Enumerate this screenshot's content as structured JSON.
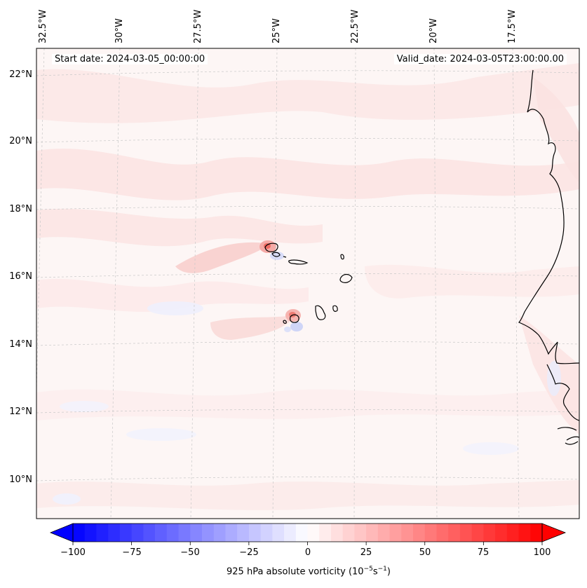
{
  "map": {
    "start_date": "Start date: 2024-03-05_00:00:00",
    "valid_date": "Valid_date: 2024-03-05T23:00:00.00",
    "lon_labels": [
      "32.5°W",
      "30°W",
      "27.5°W",
      "25°W",
      "22.5°W",
      "20°W",
      "17.5°W"
    ],
    "lat_labels": [
      "22°N",
      "20°N",
      "18°N",
      "16°N",
      "14°N",
      "12°N",
      "10°N"
    ],
    "background_color": "#fdf6f5",
    "coastline_color": "#000000",
    "gridline_color": "#c8c8c8"
  },
  "colorbar": {
    "title": "925 hPa absolute vorticity (10",
    "title_exp1": "−5",
    "title_mid": "s",
    "title_exp2": "−1",
    "title_end": ")",
    "ticks": [
      "−100",
      "−75",
      "−50",
      "−25",
      "0",
      "25",
      "50",
      "75",
      "100"
    ],
    "min_color": "#0000ff",
    "mid_color": "#ffffff",
    "max_color": "#ff0000",
    "min": -100,
    "max": 100,
    "levels": 40
  }
}
